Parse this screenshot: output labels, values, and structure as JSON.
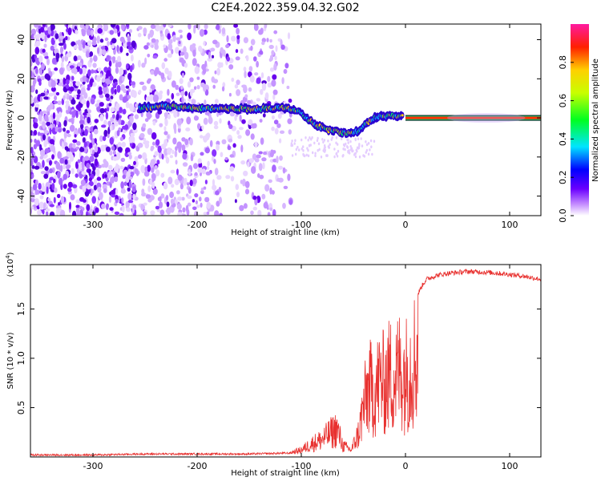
{
  "title": "C2E4.2022.359.04.32.G02",
  "colorbar": {
    "label": "Normalized spectral amplitude",
    "ticks": [
      "0.0",
      "0.2",
      "0.4",
      "0.6",
      "0.8"
    ]
  },
  "chart_data": [
    {
      "type": "heatmap",
      "name": "spectrogram",
      "xlabel": "Height of straight line (km)",
      "ylabel": "Frequency (Hz)",
      "xlim": [
        -360,
        130
      ],
      "ylim": [
        -50,
        48
      ],
      "xticks": [
        "-300",
        "-200",
        "-100",
        "0",
        "100"
      ],
      "yticks": [
        "40",
        "20",
        "0",
        "-20",
        "-40"
      ],
      "ridge": [
        {
          "x": -255,
          "y": 5
        },
        {
          "x": -230,
          "y": 6
        },
        {
          "x": -200,
          "y": 5
        },
        {
          "x": -175,
          "y": 5
        },
        {
          "x": -150,
          "y": 4.5
        },
        {
          "x": -120,
          "y": 5
        },
        {
          "x": -105,
          "y": 4
        },
        {
          "x": -95,
          "y": 0
        },
        {
          "x": -85,
          "y": -4
        },
        {
          "x": -75,
          "y": -6
        },
        {
          "x": -65,
          "y": -7
        },
        {
          "x": -55,
          "y": -8
        },
        {
          "x": -45,
          "y": -7
        },
        {
          "x": -38,
          "y": -3
        },
        {
          "x": -30,
          "y": 0
        },
        {
          "x": -20,
          "y": 1
        },
        {
          "x": -10,
          "y": 1
        },
        {
          "x": 0,
          "y": 0.5
        },
        {
          "x": 40,
          "y": 0
        },
        {
          "x": 80,
          "y": 0
        },
        {
          "x": 130,
          "y": 0
        }
      ]
    },
    {
      "type": "line",
      "name": "snr",
      "xlabel": "Height of straight line (km)",
      "ylabel": "SNR (10 * v/v)",
      "scale_label": "(x10",
      "scale_exp": "4",
      "xlim": [
        -360,
        130
      ],
      "ylim": [
        0,
        1.95
      ],
      "xticks": [
        "-300",
        "-200",
        "-100",
        "0",
        "100"
      ],
      "yticks": [
        "0.5",
        "1.0",
        "1.5"
      ],
      "color": "#e8312f",
      "envelope": [
        {
          "x": -360,
          "y": 0.02
        },
        {
          "x": -300,
          "y": 0.02
        },
        {
          "x": -250,
          "y": 0.03
        },
        {
          "x": -200,
          "y": 0.03
        },
        {
          "x": -150,
          "y": 0.03
        },
        {
          "x": -110,
          "y": 0.04
        },
        {
          "x": -100,
          "y": 0.08
        },
        {
          "x": -90,
          "y": 0.18
        },
        {
          "x": -80,
          "y": 0.25
        },
        {
          "x": -72,
          "y": 0.35
        },
        {
          "x": -66,
          "y": 0.42
        },
        {
          "x": -60,
          "y": 0.15
        },
        {
          "x": -52,
          "y": 0.08
        },
        {
          "x": -45,
          "y": 0.35
        },
        {
          "x": -40,
          "y": 0.8
        },
        {
          "x": -35,
          "y": 1.1
        },
        {
          "x": -30,
          "y": 1.0
        },
        {
          "x": -25,
          "y": 1.2
        },
        {
          "x": -20,
          "y": 1.15
        },
        {
          "x": -15,
          "y": 1.3
        },
        {
          "x": -10,
          "y": 1.25
        },
        {
          "x": -5,
          "y": 1.4
        },
        {
          "x": 0,
          "y": 1.3
        },
        {
          "x": 5,
          "y": 1.45
        },
        {
          "x": 10,
          "y": 1.6
        },
        {
          "x": 15,
          "y": 1.72
        },
        {
          "x": 20,
          "y": 1.8
        },
        {
          "x": 30,
          "y": 1.84
        },
        {
          "x": 40,
          "y": 1.86
        },
        {
          "x": 60,
          "y": 1.88
        },
        {
          "x": 80,
          "y": 1.87
        },
        {
          "x": 100,
          "y": 1.85
        },
        {
          "x": 115,
          "y": 1.83
        },
        {
          "x": 130,
          "y": 1.8
        }
      ]
    }
  ]
}
